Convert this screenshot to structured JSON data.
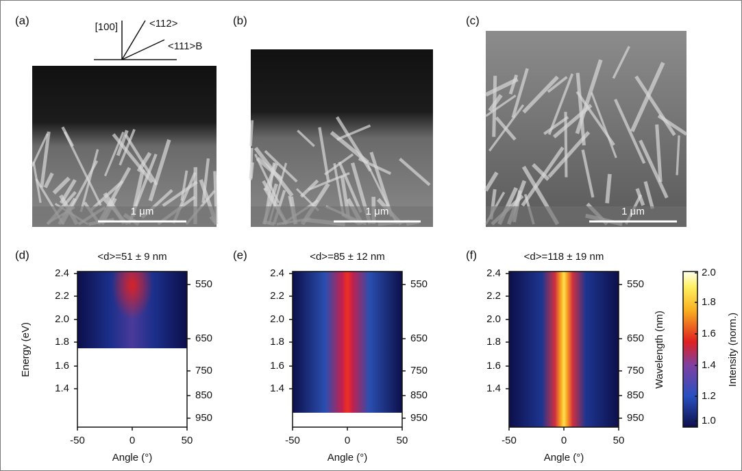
{
  "crystal_axes": {
    "a": "[100]",
    "b": "<112>",
    "c": "<111>B"
  },
  "panels_top": [
    {
      "label": "(a)",
      "scale_bar": "1 μm"
    },
    {
      "label": "(b)",
      "scale_bar": "1 μm"
    },
    {
      "label": "(c)",
      "scale_bar": "1 μm"
    }
  ],
  "panels_bottom": [
    {
      "label": "(d)",
      "title": "<d>=51 ± 9 nm",
      "energy_ticks": [
        "2.4",
        "2.2",
        "2.0",
        "1.8",
        "1.6",
        "1.4"
      ],
      "wavelength_ticks": [
        "550",
        "650",
        "750",
        "850",
        "950"
      ],
      "x_ticks": [
        "-50",
        "0",
        "50"
      ],
      "x_label": "Angle (°)"
    },
    {
      "label": "(e)",
      "title": "<d>=85 ± 12 nm",
      "energy_ticks": [
        "2.4",
        "2.2",
        "2.0",
        "1.8",
        "1.6",
        "1.4"
      ],
      "wavelength_ticks": [
        "550",
        "650",
        "750",
        "850",
        "950"
      ],
      "x_ticks": [
        "-50",
        "0",
        "50"
      ],
      "x_label": "Angle (°)"
    },
    {
      "label": "(f)",
      "title": "<d>=118 ± 19 nm",
      "energy_ticks": [
        "2.4",
        "2.2",
        "2.0",
        "1.8",
        "1.6",
        "1.4"
      ],
      "wavelength_ticks": [
        "550",
        "650",
        "750",
        "850",
        "950"
      ],
      "x_ticks": [
        "-50",
        "0",
        "50"
      ],
      "x_label": "Angle (°)"
    }
  ],
  "energy_label": "Energy (eV)",
  "wavelength_label": "Wavelength (nm)",
  "colorbar": {
    "ticks": [
      "2.0",
      "1.8",
      "1.6",
      "1.4",
      "1.2",
      "1.0"
    ],
    "label": "Intensity (norm.)"
  }
}
